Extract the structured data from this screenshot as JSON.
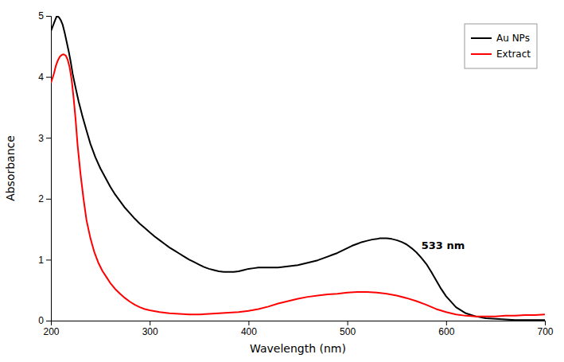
{
  "chart_data": {
    "type": "line",
    "xlabel": "Wavelength (nm)",
    "ylabel": "Absorbance",
    "xlim": [
      200,
      700
    ],
    "ylim": [
      0,
      5
    ],
    "xticks": [
      200,
      300,
      400,
      500,
      600,
      700
    ],
    "yticks": [
      0,
      1,
      2,
      3,
      4,
      5
    ],
    "grid": false,
    "legend": "upper right",
    "annotations": [
      {
        "text": "533 nm",
        "x": 575,
        "y": 1.18
      }
    ],
    "series": [
      {
        "name": "Au NPs",
        "color": "#000000",
        "x": [
          200,
          204,
          206,
          208,
          210,
          212,
          214,
          216,
          218,
          220,
          222,
          225,
          228,
          232,
          236,
          240,
          245,
          250,
          255,
          260,
          265,
          270,
          275,
          280,
          285,
          290,
          295,
          300,
          305,
          310,
          315,
          320,
          325,
          330,
          335,
          340,
          345,
          350,
          355,
          360,
          365,
          370,
          375,
          380,
          385,
          390,
          395,
          400,
          405,
          410,
          415,
          420,
          425,
          430,
          435,
          440,
          445,
          450,
          455,
          460,
          465,
          470,
          475,
          480,
          485,
          490,
          495,
          500,
          505,
          510,
          515,
          520,
          525,
          530,
          533,
          535,
          540,
          545,
          550,
          555,
          560,
          565,
          570,
          575,
          580,
          585,
          590,
          595,
          600,
          610,
          620,
          630,
          640,
          650,
          660,
          670,
          680,
          690,
          700
        ],
        "values": [
          4.75,
          4.92,
          5.0,
          4.98,
          4.93,
          4.85,
          4.72,
          4.57,
          4.42,
          4.25,
          4.05,
          3.82,
          3.6,
          3.35,
          3.12,
          2.9,
          2.68,
          2.5,
          2.35,
          2.2,
          2.07,
          1.96,
          1.85,
          1.76,
          1.67,
          1.59,
          1.52,
          1.45,
          1.38,
          1.32,
          1.26,
          1.2,
          1.15,
          1.1,
          1.05,
          1.0,
          0.96,
          0.92,
          0.88,
          0.85,
          0.83,
          0.81,
          0.8,
          0.8,
          0.8,
          0.81,
          0.83,
          0.85,
          0.86,
          0.87,
          0.87,
          0.87,
          0.87,
          0.87,
          0.88,
          0.89,
          0.9,
          0.91,
          0.93,
          0.95,
          0.97,
          0.99,
          1.02,
          1.05,
          1.08,
          1.11,
          1.15,
          1.19,
          1.23,
          1.26,
          1.29,
          1.31,
          1.33,
          1.34,
          1.35,
          1.35,
          1.35,
          1.34,
          1.32,
          1.29,
          1.25,
          1.19,
          1.12,
          1.03,
          0.93,
          0.8,
          0.66,
          0.52,
          0.4,
          0.22,
          0.12,
          0.07,
          0.04,
          0.03,
          0.02,
          0.01,
          0.01,
          0.01,
          0.01
        ]
      },
      {
        "name": "Extract",
        "color": "#ff0000",
        "x": [
          200,
          203,
          205,
          207,
          209,
          211,
          213,
          215,
          217,
          219,
          221,
          223,
          225,
          227,
          230,
          233,
          236,
          240,
          244,
          248,
          252,
          256,
          260,
          265,
          270,
          275,
          280,
          285,
          290,
          295,
          300,
          310,
          320,
          330,
          340,
          350,
          360,
          370,
          380,
          390,
          400,
          410,
          420,
          430,
          440,
          450,
          460,
          470,
          480,
          490,
          500,
          510,
          520,
          530,
          540,
          550,
          560,
          570,
          580,
          590,
          600,
          610,
          620,
          630,
          640,
          650,
          660,
          670,
          680,
          690,
          700
        ],
        "values": [
          3.9,
          4.05,
          4.18,
          4.27,
          4.33,
          4.36,
          4.37,
          4.35,
          4.28,
          4.15,
          3.95,
          3.65,
          3.3,
          2.88,
          2.4,
          2.0,
          1.65,
          1.35,
          1.12,
          0.95,
          0.82,
          0.72,
          0.62,
          0.52,
          0.44,
          0.37,
          0.31,
          0.26,
          0.22,
          0.19,
          0.17,
          0.14,
          0.12,
          0.11,
          0.1,
          0.1,
          0.11,
          0.12,
          0.13,
          0.14,
          0.16,
          0.19,
          0.23,
          0.28,
          0.32,
          0.36,
          0.39,
          0.41,
          0.43,
          0.44,
          0.46,
          0.47,
          0.47,
          0.46,
          0.44,
          0.41,
          0.37,
          0.32,
          0.26,
          0.19,
          0.14,
          0.1,
          0.08,
          0.07,
          0.07,
          0.07,
          0.08,
          0.08,
          0.09,
          0.09,
          0.1
        ]
      }
    ]
  }
}
